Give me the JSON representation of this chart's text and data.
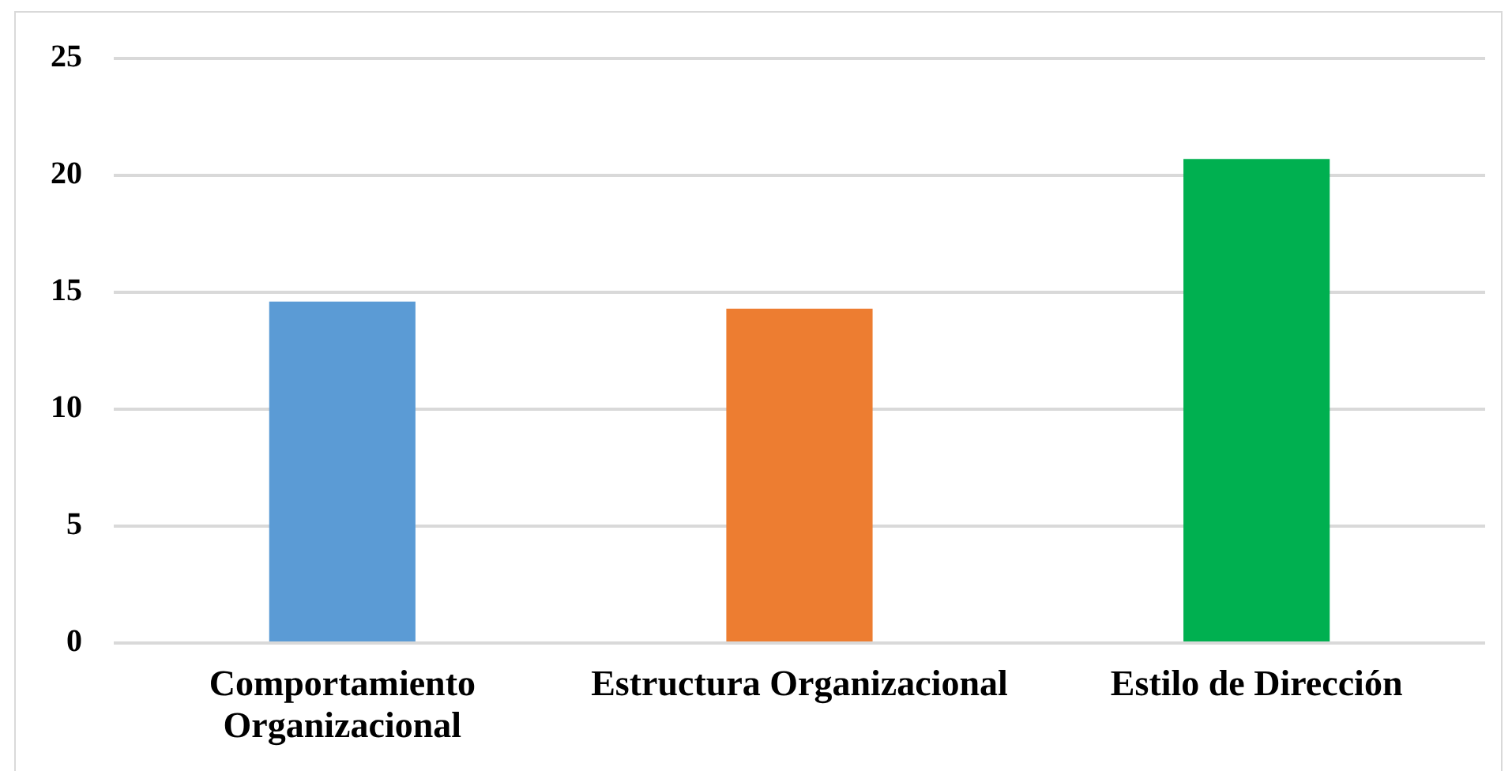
{
  "chart_data": {
    "type": "bar",
    "categories": [
      "Comportamiento Organizacional",
      "Estructura Organizacional",
      "Estilo de Dirección"
    ],
    "values": [
      14.6,
      14.3,
      20.7
    ],
    "colors": [
      "#5b9bd5",
      "#ed7d31",
      "#00b050"
    ],
    "ylim": [
      0,
      25
    ],
    "yticks": [
      0,
      5,
      10,
      15,
      20,
      25
    ],
    "grid": "y"
  }
}
